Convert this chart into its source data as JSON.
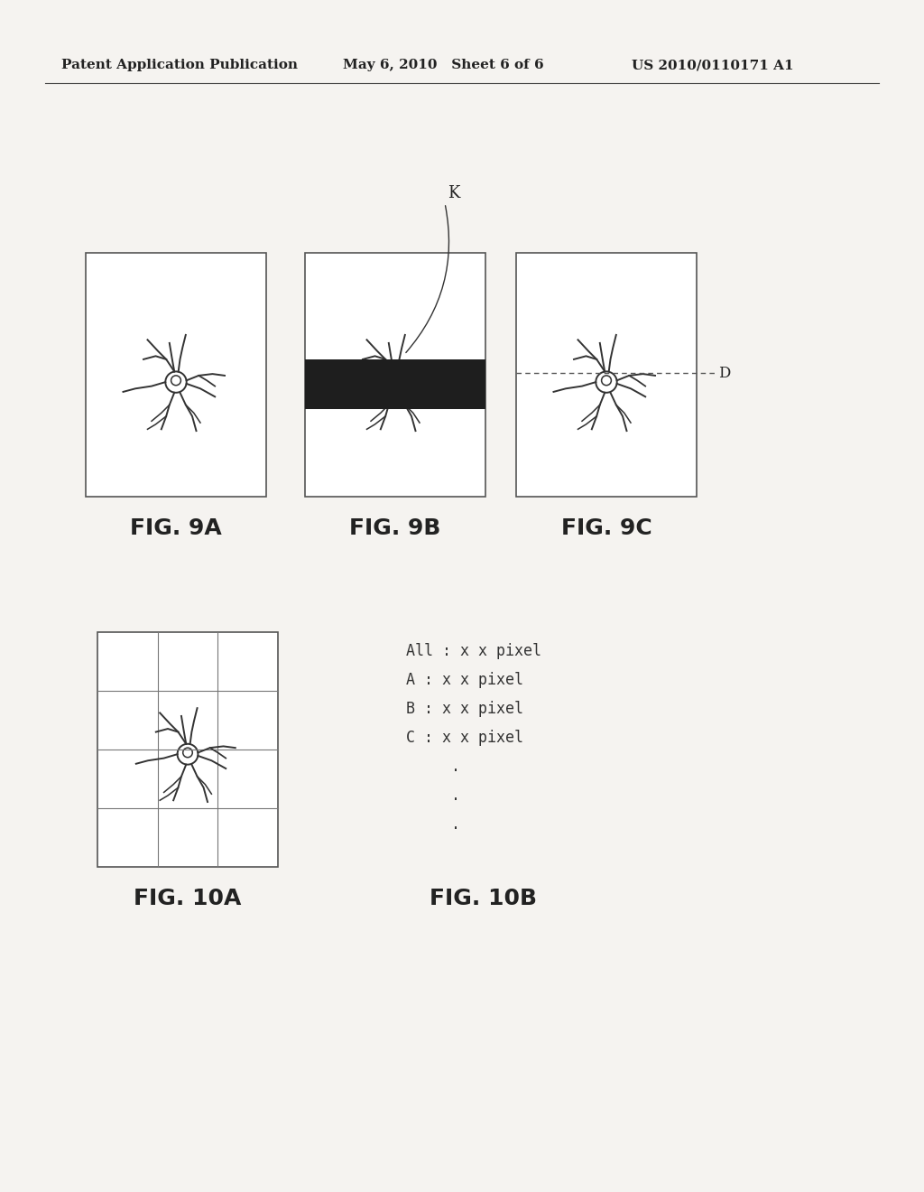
{
  "bg_color": "#f5f3f0",
  "header_left": "Patent Application Publication",
  "header_mid": "May 6, 2010   Sheet 6 of 6",
  "header_right": "US 2010/0110171 A1",
  "header_fontsize": 11,
  "fig9_labels": [
    "FIG. 9A",
    "FIG. 9B",
    "FIG. 9C"
  ],
  "fig10_labels": [
    "FIG. 10A",
    "FIG. 10B"
  ],
  "label_K": "K",
  "label_D": "D",
  "fig10b_lines": [
    "All : x x pixel",
    "A : x x pixel",
    "B : x x pixel",
    "C : x x pixel",
    "   .   .   ."
  ],
  "dark_band_color": "#1e1e1e",
  "vessel_color": "#333333",
  "box_edge_color": "#555555",
  "label_fontsize": 18,
  "text_fontsize": 12
}
